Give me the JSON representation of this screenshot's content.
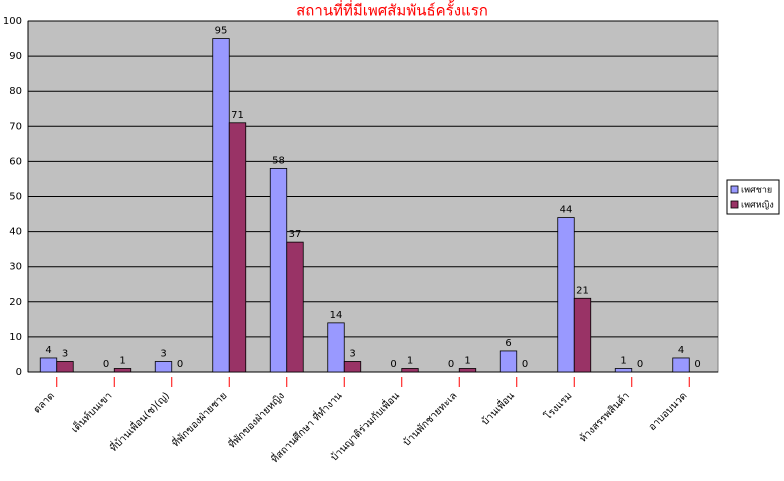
{
  "chart_data": {
    "type": "bar",
    "title": "สถานที่ที่มีเพศสัมพันธ์ครั้งแรก",
    "categories": [
      "ตลาด",
      "เต็นท์บนเขา",
      "ที่บ้านเพื่อน(ช)(ญ)",
      "ที่พักของฝ่ายชาย",
      "ที่พักของฝ่ายหญิง",
      "ที่สถานศึกษา ที่ทำงาน",
      "บ้านญาติร่วมกับเพื่อน",
      "บ้านพักชายทะเล",
      "บ้านเพื่อน",
      "โรงแรม",
      "ห้างสรรพสินค้า",
      "อาบอบนวด"
    ],
    "series": [
      {
        "name": "เพศชาย",
        "color": "#9999ff",
        "values": [
          4,
          0,
          3,
          95,
          58,
          14,
          0,
          0,
          6,
          44,
          1,
          4
        ]
      },
      {
        "name": "เพศหญิง",
        "color": "#993366",
        "values": [
          3,
          1,
          0,
          71,
          37,
          3,
          1,
          1,
          0,
          21,
          0,
          0
        ]
      }
    ],
    "ylim": [
      0,
      100
    ],
    "yticks": [
      0,
      10,
      20,
      30,
      40,
      50,
      60,
      70,
      80,
      90,
      100
    ],
    "grid": true,
    "legend": "right"
  }
}
